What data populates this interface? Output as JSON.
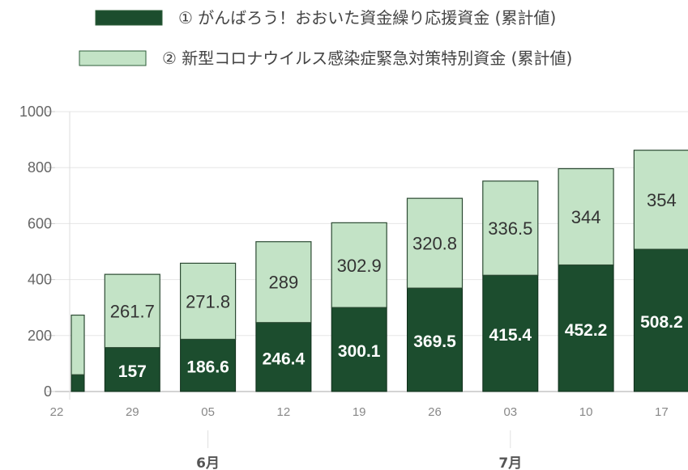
{
  "chart_data": {
    "type": "bar",
    "stacked": true,
    "legend_placement": "top-center",
    "grid": true,
    "ylim": [
      0,
      1000
    ],
    "yticks": [
      0,
      200,
      400,
      600,
      800,
      1000
    ],
    "categories": [
      "22",
      "29",
      "05",
      "12",
      "19",
      "26",
      "03",
      "10",
      "17"
    ],
    "month_labels": [
      {
        "label": "6月",
        "category": "05"
      },
      {
        "label": "7月",
        "category": "03"
      }
    ],
    "series": [
      {
        "name": "① がんばろう！おおいた資金繰り応援資金 (累計値)",
        "color": "#1c4d2e",
        "values": [
          60,
          157,
          186.6,
          246.4,
          300.1,
          369.5,
          415.4,
          452.2,
          508.2
        ],
        "labels": [
          "",
          "157",
          "186.6",
          "246.4",
          "300.1",
          "369.5",
          "415.4",
          "452.2",
          "508.2"
        ]
      },
      {
        "name": "② 新型コロナウイルス感染症緊急対策特別資金 (累計値)",
        "color": "#c3e3c6",
        "values": [
          213,
          261.7,
          271.8,
          289,
          302.9,
          320.8,
          336.5,
          344,
          354
        ],
        "labels": [
          "",
          "261.7",
          "271.8",
          "289",
          "302.9",
          "320.8",
          "336.5",
          "344",
          "354"
        ]
      }
    ]
  }
}
